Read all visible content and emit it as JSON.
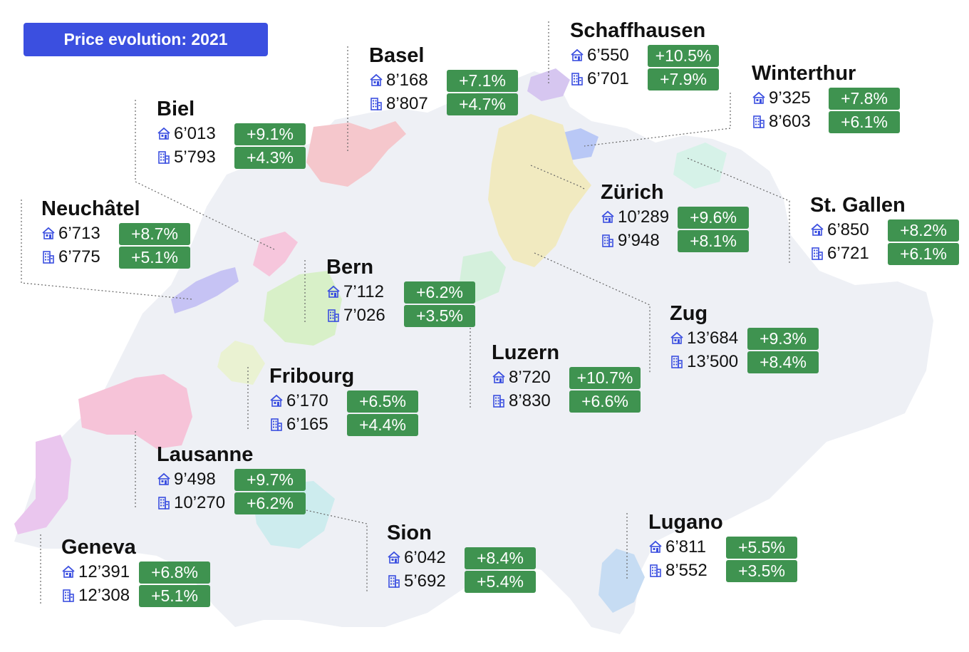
{
  "title": "Price evolution: 2021",
  "colors": {
    "badge": "#3b4fe0",
    "change_box": "#3f9350",
    "icon": "#3b4fe0"
  },
  "legend_icons": {
    "house": "house-icon",
    "apartment": "apartment-building-icon"
  },
  "cities": [
    {
      "name": "Basel",
      "house_price": "8’168",
      "house_change": "+7.1%",
      "apt_price": "8’807",
      "apt_change": "+4.7%"
    },
    {
      "name": "Schaffhausen",
      "house_price": "6’550",
      "house_change": "+10.5%",
      "apt_price": "6’701",
      "apt_change": "+7.9%"
    },
    {
      "name": "Winterthur",
      "house_price": "9’325",
      "house_change": "+7.8%",
      "apt_price": "8’603",
      "apt_change": "+6.1%"
    },
    {
      "name": "Biel",
      "house_price": "6’013",
      "house_change": "+9.1%",
      "apt_price": "5’793",
      "apt_change": "+4.3%"
    },
    {
      "name": "Neuchâtel",
      "house_price": "6’713",
      "house_change": "+8.7%",
      "apt_price": "6’775",
      "apt_change": "+5.1%"
    },
    {
      "name": "Zürich",
      "house_price": "10’289",
      "house_change": "+9.6%",
      "apt_price": "9’948",
      "apt_change": "+8.1%"
    },
    {
      "name": "St. Gallen",
      "house_price": "6’850",
      "house_change": "+8.2%",
      "apt_price": "6’721",
      "apt_change": "+6.1%"
    },
    {
      "name": "Bern",
      "house_price": "7’112",
      "house_change": "+6.2%",
      "apt_price": "7’026",
      "apt_change": "+3.5%"
    },
    {
      "name": "Zug",
      "house_price": "13’684",
      "house_change": "+9.3%",
      "apt_price": "13’500",
      "apt_change": "+8.4%"
    },
    {
      "name": "Luzern",
      "house_price": "8’720",
      "house_change": "+10.7%",
      "apt_price": "8’830",
      "apt_change": "+6.6%"
    },
    {
      "name": "Fribourg",
      "house_price": "6’170",
      "house_change": "+6.5%",
      "apt_price": "6’165",
      "apt_change": "+4.4%"
    },
    {
      "name": "Lausanne",
      "house_price": "9’498",
      "house_change": "+9.7%",
      "apt_price": "10’270",
      "apt_change": "+6.2%"
    },
    {
      "name": "Sion",
      "house_price": "6’042",
      "house_change": "+8.4%",
      "apt_price": "5’692",
      "apt_change": "+5.4%"
    },
    {
      "name": "Lugano",
      "house_price": "6’811",
      "house_change": "+5.5%",
      "apt_price": "8’552",
      "apt_change": "+3.5%"
    },
    {
      "name": "Geneva",
      "house_price": "12’391",
      "house_change": "+6.8%",
      "apt_price": "12’308",
      "apt_change": "+5.1%"
    }
  ]
}
